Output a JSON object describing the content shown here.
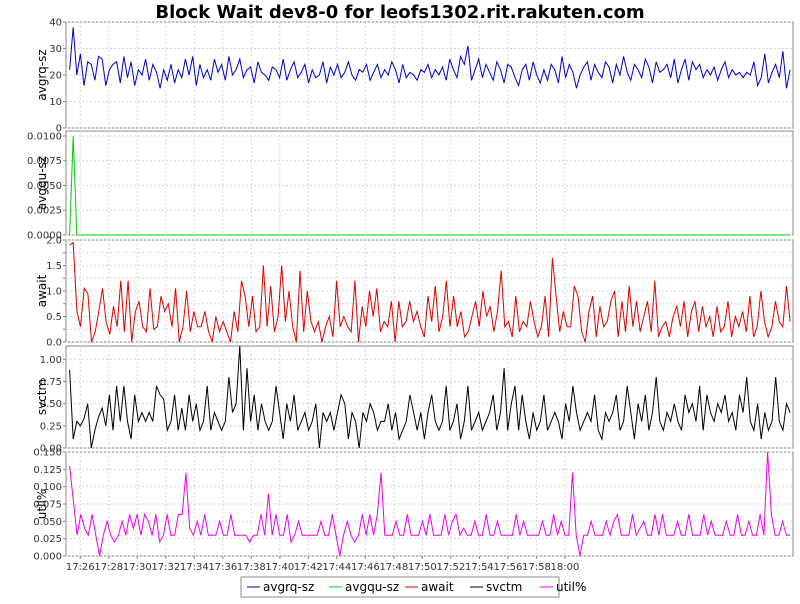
{
  "chart_data": {
    "type": "line",
    "title": "Block Wait dev8-0 for leofs1302.rit.rakuten.com",
    "time_start_min": 1045,
    "time_end_min": 1096,
    "x_tick_labels": [
      "17:26",
      "17:28",
      "17:30",
      "17:32",
      "17:34",
      "17:36",
      "17:38",
      "17:40",
      "17:42",
      "17:44",
      "17:46",
      "17:48",
      "17:50",
      "17:52",
      "17:54",
      "17:56",
      "17:58",
      "18:00"
    ],
    "x_tick_minutes": [
      1046,
      1048,
      1050,
      1052,
      1054,
      1056,
      1058,
      1060,
      1062,
      1064,
      1066,
      1068,
      1070,
      1072,
      1074,
      1076,
      1078,
      1080
    ],
    "panels": [
      {
        "name": "avgrq-sz",
        "ylabel": "avgrq-sz",
        "color": "#0000cc",
        "ylim": [
          0,
          40
        ],
        "ticks": [
          0,
          10,
          20,
          30,
          40
        ],
        "tick_labels": [
          "0",
          "10",
          "20",
          "30",
          "40"
        ],
        "values": [
          22,
          38,
          20,
          28,
          16,
          25,
          24,
          18,
          27,
          26,
          16,
          22,
          24,
          25,
          17,
          27,
          19,
          25,
          16,
          22,
          20,
          26,
          18,
          24,
          21,
          15,
          22,
          18,
          24,
          17,
          22,
          19,
          26,
          20,
          27,
          16,
          24,
          19,
          22,
          18,
          26,
          21,
          24,
          18,
          27,
          20,
          22,
          26,
          19,
          22,
          23,
          17,
          25,
          21,
          20,
          18,
          23,
          22,
          19,
          26,
          18,
          22,
          25,
          19,
          21,
          24,
          17,
          22,
          19,
          20,
          25,
          17,
          23,
          20,
          24,
          19,
          21,
          25,
          20,
          18,
          22,
          21,
          24,
          18,
          21,
          24,
          19,
          22,
          20,
          25,
          22,
          17,
          24,
          19,
          21,
          20,
          18,
          22,
          21,
          24,
          19,
          22,
          20,
          23,
          18,
          26,
          22,
          19,
          27,
          24,
          31,
          18,
          22,
          26,
          19,
          24,
          21,
          18,
          25,
          22,
          17,
          24,
          23,
          19,
          16,
          22,
          24,
          18,
          25,
          20,
          17,
          22,
          18,
          24,
          22,
          17,
          27,
          19,
          24,
          21,
          15,
          20,
          23,
          25,
          18,
          24,
          21,
          19,
          25,
          23,
          17,
          24,
          20,
          27,
          21,
          18,
          24,
          22,
          19,
          26,
          23,
          17,
          25,
          21,
          22,
          24,
          19,
          26,
          17,
          22,
          26,
          18,
          25,
          22,
          24,
          19,
          22,
          20,
          23,
          18,
          22,
          25,
          19,
          22,
          20,
          21,
          19,
          21,
          20,
          25,
          16,
          19,
          28,
          17,
          21,
          24,
          19,
          29,
          15,
          22
        ]
      },
      {
        "name": "avgqu-sz",
        "ylabel": "avgqu-sz",
        "color": "#00cc00",
        "ylim": [
          0,
          0.0105
        ],
        "ticks": [
          0,
          0.0025,
          0.005,
          0.0075,
          0.01
        ],
        "tick_labels": [
          "0.0000",
          "0.0025",
          "0.0050",
          "0.0075",
          "0.0100"
        ],
        "values": [
          0,
          0.01,
          0,
          0,
          0,
          0,
          0,
          0,
          0,
          0,
          0,
          0,
          0,
          0,
          0,
          0,
          0,
          0,
          0,
          0,
          0,
          0,
          0,
          0,
          0,
          0,
          0,
          0,
          0,
          0,
          0,
          0,
          0,
          0,
          0,
          0,
          0,
          0,
          0,
          0,
          0,
          0,
          0,
          0,
          0,
          0,
          0,
          0,
          0,
          0,
          0,
          0,
          0,
          0,
          0,
          0,
          0,
          0,
          0,
          0,
          0,
          0,
          0,
          0,
          0,
          0,
          0,
          0,
          0,
          0,
          0,
          0,
          0,
          0,
          0,
          0,
          0,
          0,
          0,
          0,
          0,
          0,
          0,
          0,
          0,
          0,
          0,
          0,
          0,
          0,
          0,
          0,
          0,
          0,
          0,
          0,
          0,
          0,
          0,
          0,
          0,
          0,
          0,
          0,
          0,
          0,
          0,
          0,
          0,
          0,
          0,
          0,
          0,
          0,
          0,
          0,
          0,
          0,
          0,
          0,
          0,
          0,
          0,
          0,
          0,
          0,
          0,
          0,
          0,
          0,
          0,
          0,
          0,
          0,
          0,
          0,
          0,
          0,
          0,
          0,
          0,
          0,
          0,
          0,
          0,
          0,
          0,
          0,
          0,
          0,
          0,
          0,
          0,
          0,
          0,
          0,
          0,
          0,
          0,
          0,
          0,
          0,
          0,
          0,
          0,
          0,
          0,
          0,
          0,
          0,
          0,
          0,
          0,
          0,
          0,
          0,
          0,
          0,
          0,
          0,
          0,
          0,
          0,
          0,
          0,
          0,
          0,
          0,
          0,
          0,
          0,
          0,
          0,
          0,
          0,
          0,
          0,
          0,
          0,
          0
        ]
      },
      {
        "name": "await",
        "ylabel": "await",
        "color": "#dd0000",
        "ylim": [
          0,
          2.0
        ],
        "ticks": [
          0,
          0.25,
          0.5,
          0.75,
          1.0,
          1.25,
          1.5,
          1.75,
          2.0
        ],
        "tick_labels": [
          "0.0",
          "0.5",
          "1.0",
          "1.5",
          "2.0"
        ],
        "values": [
          1.9,
          1.95,
          0.6,
          0.3,
          1.05,
          0.95,
          0.0,
          0.2,
          0.6,
          1.05,
          0.4,
          0.15,
          0.7,
          0.3,
          1.2,
          0.2,
          1.2,
          0.0,
          0.6,
          0.8,
          0.3,
          0.2,
          1.05,
          0.25,
          0.3,
          0.9,
          0.6,
          0.75,
          0.3,
          1.05,
          0.0,
          0.3,
          1.0,
          0.2,
          0.6,
          0.3,
          0.3,
          0.6,
          0.2,
          0.0,
          0.5,
          0.2,
          0.4,
          0.2,
          0.0,
          0.6,
          0.2,
          1.2,
          0.9,
          0.3,
          0.9,
          0.2,
          0.3,
          1.5,
          0.3,
          1.1,
          0.2,
          0.5,
          1.5,
          0.4,
          1.0,
          0.3,
          0.0,
          1.4,
          0.2,
          1.0,
          0.4,
          0.2,
          0.4,
          0.0,
          0.3,
          0.5,
          0.1,
          1.2,
          0.3,
          0.5,
          0.3,
          0.2,
          1.2,
          0.0,
          0.7,
          0.3,
          1.0,
          0.5,
          1.05,
          0.2,
          0.4,
          0.3,
          0.8,
          0.0,
          0.8,
          0.3,
          0.4,
          0.8,
          0.4,
          0.6,
          0.3,
          0.1,
          0.9,
          0.4,
          1.1,
          0.2,
          0.5,
          1.2,
          0.3,
          0.9,
          0.3,
          0.6,
          0.1,
          0.2,
          0.5,
          0.8,
          0.3,
          1.0,
          0.5,
          0.7,
          0.2,
          0.6,
          1.4,
          0.3,
          0.4,
          0.1,
          0.9,
          0.2,
          0.4,
          0.3,
          0.8,
          0.4,
          0.1,
          0.3,
          0.9,
          0.1,
          1.65,
          0.9,
          0.2,
          0.6,
          0.3,
          0.3,
          1.1,
          0.9,
          0.2,
          0.0,
          0.6,
          0.9,
          0.1,
          0.7,
          0.3,
          0.4,
          0.8,
          1.0,
          0.1,
          0.8,
          0.2,
          1.1,
          0.3,
          0.8,
          0.2,
          0.5,
          0.8,
          0.2,
          1.2,
          0.1,
          0.3,
          0.4,
          0.1,
          0.5,
          0.7,
          0.3,
          0.8,
          0.1,
          0.6,
          0.8,
          0.2,
          0.7,
          0.3,
          0.5,
          0.1,
          0.7,
          0.2,
          0.3,
          0.8,
          0.1,
          0.5,
          0.3,
          0.6,
          0.2,
          0.9,
          0.1,
          0.3,
          1.0,
          0.4,
          0.1,
          0.3,
          0.8,
          0.4,
          0.3,
          1.1,
          0.4
        ]
      },
      {
        "name": "svctm",
        "ylabel": "svctm",
        "color": "#000000",
        "ylim": [
          0,
          1.15
        ],
        "ticks": [
          0,
          0.25,
          0.5,
          0.75,
          1.0
        ],
        "tick_labels": [
          "0.00",
          "0.25",
          "0.50",
          "0.75",
          "1.00"
        ],
        "values": [
          0.88,
          0.1,
          0.3,
          0.25,
          0.33,
          0.5,
          0.0,
          0.2,
          0.35,
          0.45,
          0.25,
          0.6,
          0.2,
          0.7,
          0.3,
          0.7,
          0.3,
          0.1,
          0.6,
          0.3,
          0.4,
          0.3,
          0.4,
          0.3,
          0.7,
          0.6,
          0.55,
          0.2,
          0.3,
          0.6,
          0.2,
          0.45,
          0.2,
          0.6,
          0.3,
          0.5,
          0.2,
          0.3,
          0.7,
          0.2,
          0.4,
          0.3,
          0.2,
          0.3,
          0.8,
          0.4,
          0.5,
          1.15,
          0.2,
          0.9,
          0.3,
          0.6,
          0.2,
          0.5,
          0.3,
          0.2,
          0.3,
          0.7,
          0.4,
          0.1,
          0.5,
          0.3,
          0.6,
          0.2,
          0.3,
          0.4,
          0.2,
          0.3,
          0.5,
          0.0,
          0.4,
          0.3,
          0.4,
          0.2,
          0.4,
          0.6,
          0.5,
          0.1,
          0.4,
          0.3,
          0.0,
          0.4,
          0.3,
          0.5,
          0.4,
          0.2,
          0.3,
          0.3,
          0.5,
          0.2,
          0.4,
          0.1,
          0.2,
          0.3,
          0.6,
          0.4,
          0.2,
          0.4,
          0.1,
          0.4,
          0.6,
          0.3,
          0.2,
          0.3,
          0.7,
          0.2,
          0.3,
          0.5,
          0.1,
          0.3,
          0.7,
          0.2,
          0.3,
          0.4,
          0.2,
          0.3,
          0.4,
          0.6,
          0.2,
          0.4,
          0.9,
          0.2,
          0.5,
          0.7,
          0.2,
          0.6,
          0.3,
          0.1,
          0.4,
          0.2,
          0.3,
          0.6,
          0.2,
          0.3,
          0.4,
          0.3,
          0.1,
          0.5,
          0.3,
          0.7,
          0.4,
          0.2,
          0.3,
          0.4,
          0.3,
          0.6,
          0.2,
          0.1,
          0.4,
          0.3,
          0.4,
          0.6,
          0.2,
          0.3,
          0.7,
          0.4,
          0.1,
          0.5,
          0.3,
          0.6,
          0.2,
          0.4,
          0.8,
          0.3,
          0.2,
          0.4,
          0.3,
          0.5,
          0.3,
          0.2,
          0.6,
          0.4,
          0.5,
          0.3,
          0.7,
          0.2,
          0.6,
          0.4,
          0.3,
          0.5,
          0.4,
          0.6,
          0.3,
          0.4,
          0.2,
          0.6,
          0.4,
          0.8,
          0.3,
          0.2,
          0.5,
          0.1,
          0.4,
          0.2,
          0.3,
          0.8,
          0.3,
          0.2,
          0.5,
          0.4
        ]
      },
      {
        "name": "util%",
        "ylabel": "util%",
        "color": "#ee00ee",
        "ylim": [
          0,
          0.15
        ],
        "ticks": [
          0,
          0.025,
          0.05,
          0.075,
          0.1,
          0.125,
          0.15
        ],
        "tick_labels": [
          "0.000",
          "0.025",
          "0.050",
          "0.075",
          "0.100",
          "0.125",
          "0.150"
        ],
        "values": [
          0.13,
          0.08,
          0.03,
          0.06,
          0.04,
          0.03,
          0.06,
          0.03,
          0.0,
          0.03,
          0.05,
          0.03,
          0.02,
          0.03,
          0.05,
          0.03,
          0.06,
          0.04,
          0.06,
          0.03,
          0.06,
          0.05,
          0.03,
          0.06,
          0.02,
          0.03,
          0.06,
          0.03,
          0.03,
          0.06,
          0.06,
          0.12,
          0.04,
          0.03,
          0.05,
          0.03,
          0.06,
          0.03,
          0.03,
          0.03,
          0.05,
          0.03,
          0.03,
          0.06,
          0.03,
          0.03,
          0.03,
          0.03,
          0.02,
          0.03,
          0.03,
          0.06,
          0.03,
          0.09,
          0.03,
          0.06,
          0.03,
          0.03,
          0.06,
          0.02,
          0.03,
          0.05,
          0.03,
          0.03,
          0.03,
          0.03,
          0.03,
          0.05,
          0.03,
          0.03,
          0.06,
          0.03,
          0.0,
          0.03,
          0.05,
          0.03,
          0.02,
          0.03,
          0.06,
          0.03,
          0.06,
          0.03,
          0.06,
          0.12,
          0.03,
          0.03,
          0.03,
          0.05,
          0.03,
          0.03,
          0.06,
          0.03,
          0.03,
          0.03,
          0.05,
          0.03,
          0.06,
          0.03,
          0.03,
          0.03,
          0.06,
          0.03,
          0.05,
          0.06,
          0.03,
          0.04,
          0.03,
          0.03,
          0.05,
          0.03,
          0.03,
          0.06,
          0.03,
          0.03,
          0.05,
          0.03,
          0.03,
          0.03,
          0.03,
          0.06,
          0.03,
          0.05,
          0.03,
          0.03,
          0.03,
          0.03,
          0.05,
          0.03,
          0.03,
          0.06,
          0.03,
          0.05,
          0.03,
          0.03,
          0.12,
          0.03,
          0.0,
          0.03,
          0.03,
          0.05,
          0.03,
          0.03,
          0.03,
          0.05,
          0.03,
          0.05,
          0.06,
          0.03,
          0.03,
          0.03,
          0.06,
          0.03,
          0.04,
          0.05,
          0.03,
          0.03,
          0.06,
          0.03,
          0.06,
          0.03,
          0.03,
          0.03,
          0.05,
          0.03,
          0.03,
          0.06,
          0.03,
          0.03,
          0.03,
          0.06,
          0.03,
          0.05,
          0.03,
          0.03,
          0.03,
          0.05,
          0.03,
          0.03,
          0.06,
          0.03,
          0.03,
          0.05,
          0.03,
          0.03,
          0.06,
          0.03,
          0.15,
          0.06,
          0.03,
          0.03,
          0.05,
          0.03,
          0.03
        ]
      }
    ],
    "legend": [
      "avgrq-sz",
      "avgqu-sz",
      "await",
      "svctm",
      "util%"
    ],
    "legend_position": "bottom"
  }
}
